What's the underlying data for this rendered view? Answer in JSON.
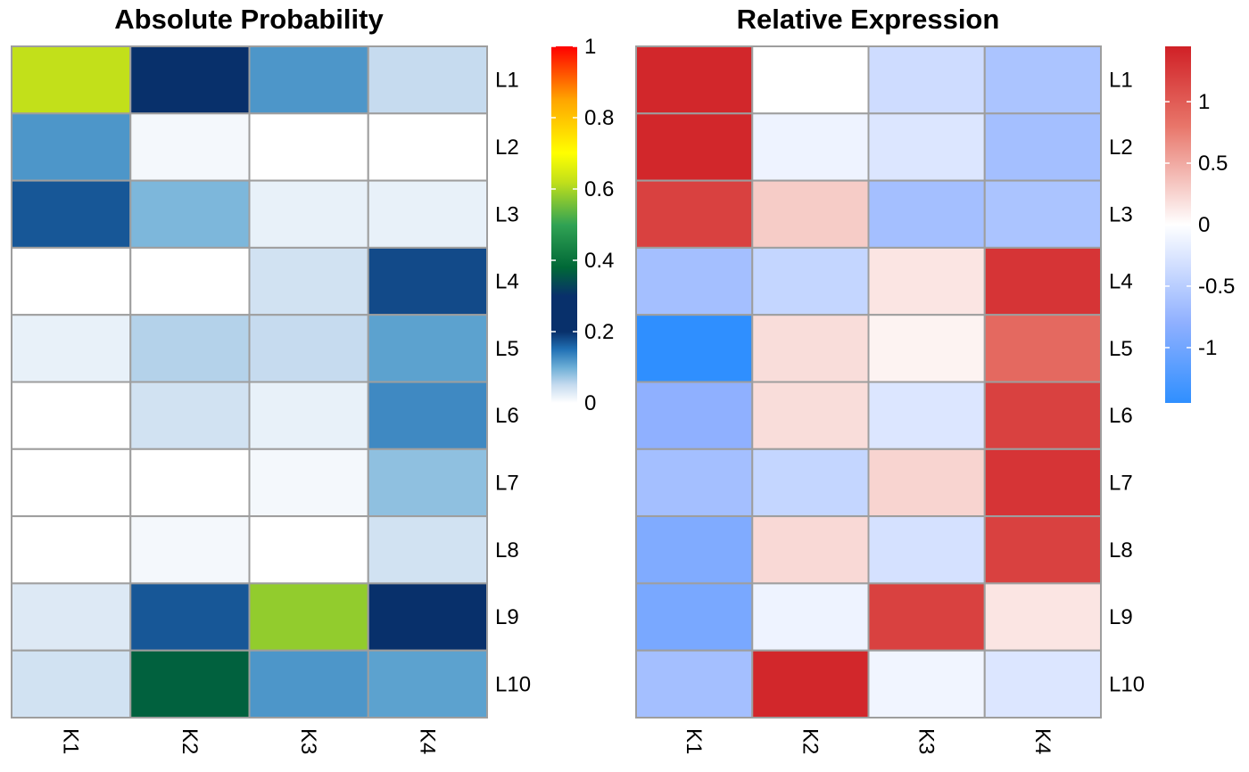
{
  "chart_data": [
    {
      "type": "heatmap",
      "title": "Absolute Probability",
      "rows": [
        "L1",
        "L2",
        "L3",
        "L4",
        "L5",
        "L6",
        "L7",
        "L8",
        "L9",
        "L10"
      ],
      "columns": [
        "K1",
        "K2",
        "K3",
        "K4"
      ],
      "values": [
        [
          0.62,
          0.21,
          0.12,
          0.05
        ],
        [
          0.12,
          0.01,
          0.0,
          0.0
        ],
        [
          0.17,
          0.09,
          0.02,
          0.02
        ],
        [
          0.0,
          0.0,
          0.04,
          0.18
        ],
        [
          0.02,
          0.06,
          0.05,
          0.11
        ],
        [
          0.0,
          0.04,
          0.02,
          0.13
        ],
        [
          0.0,
          0.0,
          0.01,
          0.08
        ],
        [
          0.0,
          0.01,
          0.0,
          0.04
        ],
        [
          0.03,
          0.17,
          0.58,
          0.22
        ],
        [
          0.04,
          0.37,
          0.12,
          0.11
        ]
      ],
      "color_scale": {
        "min": 0,
        "max": 1,
        "ticks": [
          "0",
          "0.2",
          "0.4",
          "0.6",
          "0.8",
          "1"
        ],
        "tick_values": [
          0,
          0.2,
          0.4,
          0.6,
          0.8,
          1
        ],
        "stops": [
          {
            "value": 0.0,
            "color": "#ffffff"
          },
          {
            "value": 0.05,
            "color": "#c6dbef"
          },
          {
            "value": 0.1,
            "color": "#6baed6"
          },
          {
            "value": 0.15,
            "color": "#2171b5"
          },
          {
            "value": 0.2,
            "color": "#08306b"
          },
          {
            "value": 0.3,
            "color": "#08306b"
          },
          {
            "value": 0.38,
            "color": "#006837"
          },
          {
            "value": 0.5,
            "color": "#31a354"
          },
          {
            "value": 0.62,
            "color": "#c2e01a"
          },
          {
            "value": 0.7,
            "color": "#ffff00"
          },
          {
            "value": 0.85,
            "color": "#ffa500"
          },
          {
            "value": 1.0,
            "color": "#ff0000"
          }
        ]
      }
    },
    {
      "type": "heatmap",
      "title": "Relative Expression",
      "rows": [
        "L1",
        "L2",
        "L3",
        "L4",
        "L5",
        "L6",
        "L7",
        "L8",
        "L9",
        "L10"
      ],
      "columns": [
        "K1",
        "K2",
        "K3",
        "K4"
      ],
      "values": [
        [
          1.4,
          0.0,
          -0.35,
          -0.6
        ],
        [
          1.4,
          -0.12,
          -0.25,
          -0.65
        ],
        [
          1.2,
          0.3,
          -0.65,
          -0.6
        ],
        [
          -0.65,
          -0.42,
          0.15,
          1.3
        ],
        [
          -1.45,
          0.2,
          0.07,
          0.9
        ],
        [
          -0.8,
          0.2,
          -0.25,
          1.2
        ],
        [
          -0.65,
          -0.42,
          0.25,
          1.3
        ],
        [
          -0.9,
          0.22,
          -0.3,
          1.2
        ],
        [
          -0.95,
          -0.12,
          1.2,
          0.15
        ],
        [
          -0.65,
          1.4,
          -0.1,
          -0.25
        ]
      ],
      "color_scale": {
        "min": -1.45,
        "max": 1.45,
        "ticks": [
          "-1",
          "-0.5",
          "0",
          "0.5",
          "1"
        ],
        "tick_values": [
          -1,
          -0.5,
          0,
          0.5,
          1
        ],
        "stops": [
          {
            "value": -1.45,
            "color": "#2f8fff"
          },
          {
            "value": -0.8,
            "color": "#8fb0ff"
          },
          {
            "value": 0.0,
            "color": "#ffffff"
          },
          {
            "value": 0.8,
            "color": "#e8766a"
          },
          {
            "value": 1.45,
            "color": "#d02026"
          }
        ]
      }
    }
  ]
}
